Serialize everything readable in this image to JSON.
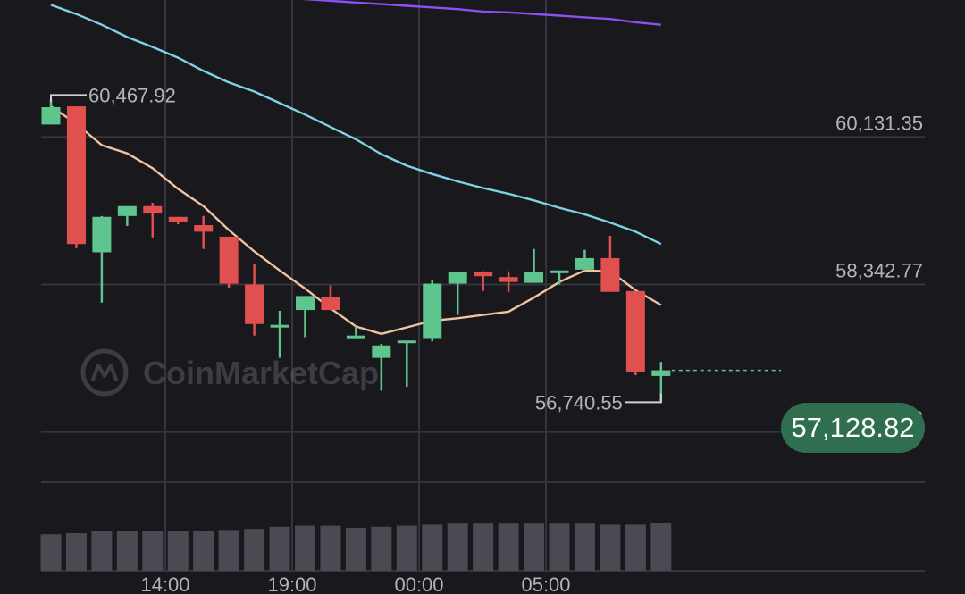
{
  "colors": {
    "background": "#18181d",
    "grid": "#35353d",
    "up": "#5fc58f",
    "down": "#e0504f",
    "ma_fast": "#f0c3a0",
    "ma_mid": "#7fd2e6",
    "ma_slow": "#8e4ff0",
    "label": "#b4b4bc",
    "volume": "#4a4a52",
    "price_pill": "#2f6e4f"
  },
  "watermark": {
    "icon": "coinmarketcap-logo-icon",
    "text": "CoinMarketCap"
  },
  "current_price": "57,128.82",
  "chart_data": {
    "type": "candlestick",
    "x_ticks": [
      "14:00",
      "19:00",
      "00:00",
      "05:00"
    ],
    "y_ticks": [
      "60,131.35",
      "58,342.77",
      "56,554.18"
    ],
    "y_tick_values": [
      60131.35,
      58342.77,
      56554.18
    ],
    "ylim": [
      55770,
      61620
    ],
    "high_marker": {
      "label": "60,467.92",
      "value": 60467.92
    },
    "low_marker": {
      "label": "56,740.55",
      "value": 56740.55
    },
    "last_price": 57128.82,
    "grid": true,
    "candles": [
      {
        "o": 60110,
        "h": 60420,
        "l": 60110,
        "c": 60320
      },
      {
        "o": 60330,
        "h": 60330,
        "l": 58610,
        "c": 58660
      },
      {
        "o": 58560,
        "h": 59000,
        "l": 57950,
        "c": 58990
      },
      {
        "o": 59000,
        "h": 59120,
        "l": 58880,
        "c": 59120
      },
      {
        "o": 59120,
        "h": 59160,
        "l": 58740,
        "c": 59030
      },
      {
        "o": 58990,
        "h": 58990,
        "l": 58900,
        "c": 58930
      },
      {
        "o": 58890,
        "h": 59000,
        "l": 58600,
        "c": 58810
      },
      {
        "o": 58750,
        "h": 58750,
        "l": 58130,
        "c": 58180
      },
      {
        "o": 58170,
        "h": 58420,
        "l": 57550,
        "c": 57690
      },
      {
        "o": 57680,
        "h": 57850,
        "l": 57280,
        "c": 57680
      },
      {
        "o": 57860,
        "h": 58030,
        "l": 57530,
        "c": 58030
      },
      {
        "o": 58020,
        "h": 58160,
        "l": 57860,
        "c": 57860
      },
      {
        "o": 57550,
        "h": 57660,
        "l": 57550,
        "c": 57550
      },
      {
        "o": 57280,
        "h": 57450,
        "l": 56880,
        "c": 57430
      },
      {
        "o": 57480,
        "h": 57470,
        "l": 56930,
        "c": 57490
      },
      {
        "o": 57520,
        "h": 58230,
        "l": 57480,
        "c": 58180
      },
      {
        "o": 58180,
        "h": 58320,
        "l": 57800,
        "c": 58320
      },
      {
        "o": 58320,
        "h": 58330,
        "l": 58090,
        "c": 58270
      },
      {
        "o": 58260,
        "h": 58330,
        "l": 58080,
        "c": 58200
      },
      {
        "o": 58190,
        "h": 58600,
        "l": 58190,
        "c": 58320
      },
      {
        "o": 58320,
        "h": 58340,
        "l": 58170,
        "c": 58340
      },
      {
        "o": 58350,
        "h": 58590,
        "l": 58340,
        "c": 58490
      },
      {
        "o": 58490,
        "h": 58760,
        "l": 58080,
        "c": 58080
      },
      {
        "o": 58090,
        "h": 58090,
        "l": 57070,
        "c": 57110
      },
      {
        "o": 57060,
        "h": 57230,
        "l": 56740.55,
        "c": 57128.82
      }
    ],
    "ma_fast": [
      60330,
      60120,
      59860,
      59760,
      59580,
      59330,
      59120,
      58830,
      58570,
      58340,
      58120,
      57880,
      57660,
      57570,
      57650,
      57730,
      57760,
      57800,
      57840,
      58010,
      58200,
      58340,
      58330,
      58100,
      57920
    ],
    "ma_mid": [
      61560,
      61450,
      61320,
      61170,
      61050,
      60920,
      60760,
      60620,
      60510,
      60370,
      60230,
      60080,
      59930,
      59750,
      59610,
      59510,
      59420,
      59340,
      59270,
      59190,
      59100,
      59020,
      58920,
      58810,
      58660
    ],
    "ma_slow": [
      null,
      null,
      null,
      null,
      null,
      null,
      null,
      null,
      null,
      61650,
      61630,
      61610,
      61590,
      61570,
      61550,
      61530,
      61510,
      61480,
      61470,
      61450,
      61430,
      61410,
      61390,
      61350,
      61320
    ],
    "volume": [
      340,
      350,
      370,
      370,
      370,
      370,
      370,
      380,
      390,
      410,
      420,
      420,
      400,
      410,
      420,
      430,
      440,
      440,
      440,
      440,
      440,
      440,
      430,
      430,
      450
    ]
  }
}
